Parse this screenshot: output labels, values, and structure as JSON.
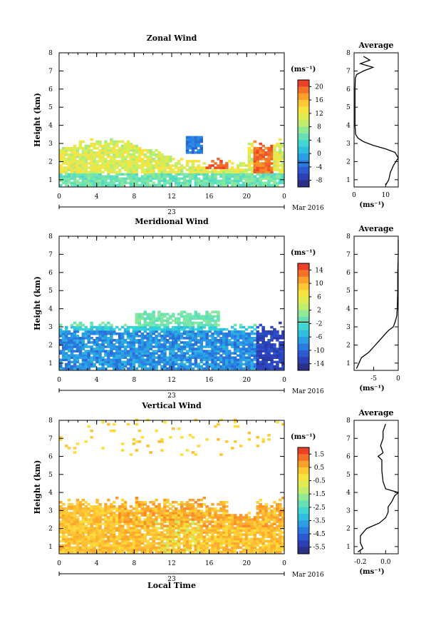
{
  "chart_data": [
    {
      "type": "heatmap",
      "title": "Zonal Wind",
      "ylabel": "Height (km)",
      "xlabel": "",
      "xlim": [
        0,
        24
      ],
      "ylim": [
        0.6,
        8.0
      ],
      "xticks": [
        "0",
        "4",
        "8",
        "12",
        "16",
        "20",
        "0"
      ],
      "yticks": [
        "1",
        "2",
        "3",
        "4",
        "5",
        "6",
        "7",
        "8"
      ],
      "date_label": "23",
      "month_label": "Mar 2016",
      "colorbar": {
        "unit": "(ms⁻¹)",
        "min": -10,
        "max": 22,
        "ticks": [
          "20",
          "16",
          "12",
          "8",
          "4",
          "0",
          "-4",
          "-8"
        ]
      },
      "average": {
        "title": "Average",
        "xlim": [
          0,
          14
        ],
        "xticks": [
          "0",
          "10"
        ],
        "xunit": "(ms⁻¹)",
        "profile": [
          [
            0.7,
            10
          ],
          [
            1.0,
            11
          ],
          [
            1.4,
            11.5
          ],
          [
            1.8,
            12.5
          ],
          [
            2.2,
            14
          ],
          [
            2.5,
            13
          ],
          [
            2.7,
            10
          ],
          [
            2.9,
            6
          ],
          [
            3.1,
            3
          ],
          [
            3.3,
            1.2
          ],
          [
            3.5,
            0.5
          ],
          [
            4.0,
            0.3
          ],
          [
            5.0,
            0.3
          ],
          [
            6.0,
            0.3
          ],
          [
            6.6,
            0.4
          ],
          [
            6.8,
            0.8
          ],
          [
            7.0,
            3
          ],
          [
            7.2,
            6
          ],
          [
            7.4,
            2
          ],
          [
            7.6,
            5
          ],
          [
            7.8,
            3
          ]
        ]
      }
    },
    {
      "type": "heatmap",
      "title": "Meridional Wind",
      "ylabel": "Height (km)",
      "xlabel": "",
      "xlim": [
        0,
        24
      ],
      "ylim": [
        0.6,
        8.0
      ],
      "xticks": [
        "0",
        "4",
        "8",
        "12",
        "16",
        "20",
        "0"
      ],
      "yticks": [
        "1",
        "2",
        "3",
        "4",
        "5",
        "6",
        "7",
        "8"
      ],
      "date_label": "23",
      "month_label": "Mar 2016",
      "colorbar": {
        "unit": "(ms⁻¹)",
        "min": -16,
        "max": 16,
        "ticks": [
          "14",
          "10",
          "6",
          "2",
          "-2",
          "-6",
          "-10",
          "-14"
        ]
      },
      "average": {
        "title": "Average",
        "xlim": [
          -9,
          0
        ],
        "xticks": [
          "-5",
          "0"
        ],
        "xunit": "(ms⁻¹)",
        "profile": [
          [
            0.7,
            -8.5
          ],
          [
            1.0,
            -8
          ],
          [
            1.3,
            -7.5
          ],
          [
            1.6,
            -6
          ],
          [
            1.9,
            -5
          ],
          [
            2.2,
            -4
          ],
          [
            2.5,
            -3
          ],
          [
            2.8,
            -2
          ],
          [
            3.0,
            -1
          ],
          [
            3.3,
            -0.6
          ],
          [
            3.6,
            -0.3
          ],
          [
            4.0,
            -0.2
          ],
          [
            5.0,
            -0.1
          ],
          [
            6.0,
            -0.1
          ],
          [
            7.0,
            0
          ],
          [
            7.8,
            0
          ]
        ]
      }
    },
    {
      "type": "heatmap",
      "title": "Vertical Wind",
      "ylabel": "Height (km)",
      "xlabel": "Local Time",
      "xlim": [
        0,
        24
      ],
      "ylim": [
        0.6,
        8.0
      ],
      "xticks": [
        "0",
        "4",
        "8",
        "12",
        "16",
        "20",
        "0"
      ],
      "yticks": [
        "1",
        "2",
        "3",
        "4",
        "5",
        "6",
        "7",
        "8"
      ],
      "date_label": "23",
      "month_label": "Mar 2016",
      "colorbar": {
        "unit": "(ms⁻¹)",
        "min": -6,
        "max": 2,
        "ticks": [
          "1.5",
          "0.5",
          "-0.5",
          "-1.5",
          "-2.5",
          "-3.5",
          "-4.5",
          "-5.5"
        ]
      },
      "average": {
        "title": "Average",
        "xlim": [
          -0.25,
          0.1
        ],
        "xticks": [
          "-0.2",
          "0.0"
        ],
        "xunit": "(ms⁻¹)",
        "profile": [
          [
            0.7,
            -0.22
          ],
          [
            0.9,
            -0.18
          ],
          [
            1.2,
            -0.2
          ],
          [
            1.6,
            -0.2
          ],
          [
            2.0,
            -0.15
          ],
          [
            2.3,
            -0.05
          ],
          [
            2.6,
            0.0
          ],
          [
            2.9,
            0.02
          ],
          [
            3.2,
            0.02
          ],
          [
            3.5,
            0.05
          ],
          [
            3.8,
            0.07
          ],
          [
            4.0,
            0.1
          ],
          [
            4.2,
            0.0
          ],
          [
            4.6,
            -0.02
          ],
          [
            5.2,
            -0.03
          ],
          [
            5.8,
            -0.03
          ],
          [
            6.0,
            -0.06
          ],
          [
            6.2,
            -0.02
          ],
          [
            6.6,
            -0.04
          ],
          [
            7.0,
            -0.02
          ],
          [
            7.4,
            -0.02
          ],
          [
            7.8,
            0.0
          ]
        ]
      }
    }
  ]
}
